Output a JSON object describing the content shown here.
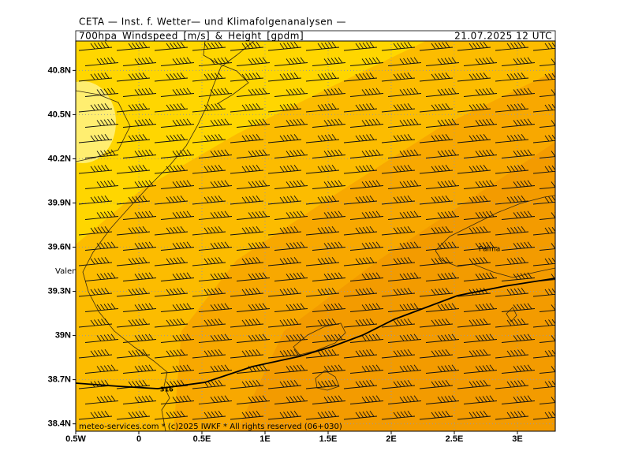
{
  "header": {
    "title": "CETA — Inst. f. Wetter— und Klimafolgenanalysen —",
    "subtitle": "700hpa_Windspeed_[m/s]_&_Height_[gpdm]",
    "date": "21.07.2025  12 UTC"
  },
  "map": {
    "xlim": [
      -0.5,
      3.3
    ],
    "ylim": [
      38.35,
      41.0
    ],
    "xticks": [
      {
        "value": -0.5,
        "label": "0.5W"
      },
      0,
      {
        "value": 0.5,
        "label": "0.5E"
      },
      {
        "value": 1,
        "label": "1E"
      },
      {
        "value": 1.5,
        "label": "1.5E"
      },
      {
        "value": 2,
        "label": "2E"
      },
      {
        "value": 2.5,
        "label": "2.5E"
      },
      {
        "value": 3,
        "label": "3E"
      }
    ],
    "yticks": [
      {
        "value": 38.4,
        "label": "38.4N"
      },
      {
        "value": 38.7,
        "label": "38.7N"
      },
      {
        "value": 39,
        "label": "39N"
      },
      {
        "value": 39.3,
        "label": "39.3N"
      },
      {
        "value": 39.6,
        "label": "39.6N"
      },
      {
        "value": 39.9,
        "label": "39.9N"
      },
      {
        "value": 40.2,
        "label": "40.2N"
      },
      {
        "value": 40.5,
        "label": "40.5N"
      },
      {
        "value": 40.8,
        "label": "40.8N"
      }
    ],
    "places": [
      "Valencia",
      "Palma"
    ],
    "contour_label": "316",
    "footer": "meteo-services.com * (c)2025 IWKF * All rights reserved (06+030)"
  }
}
